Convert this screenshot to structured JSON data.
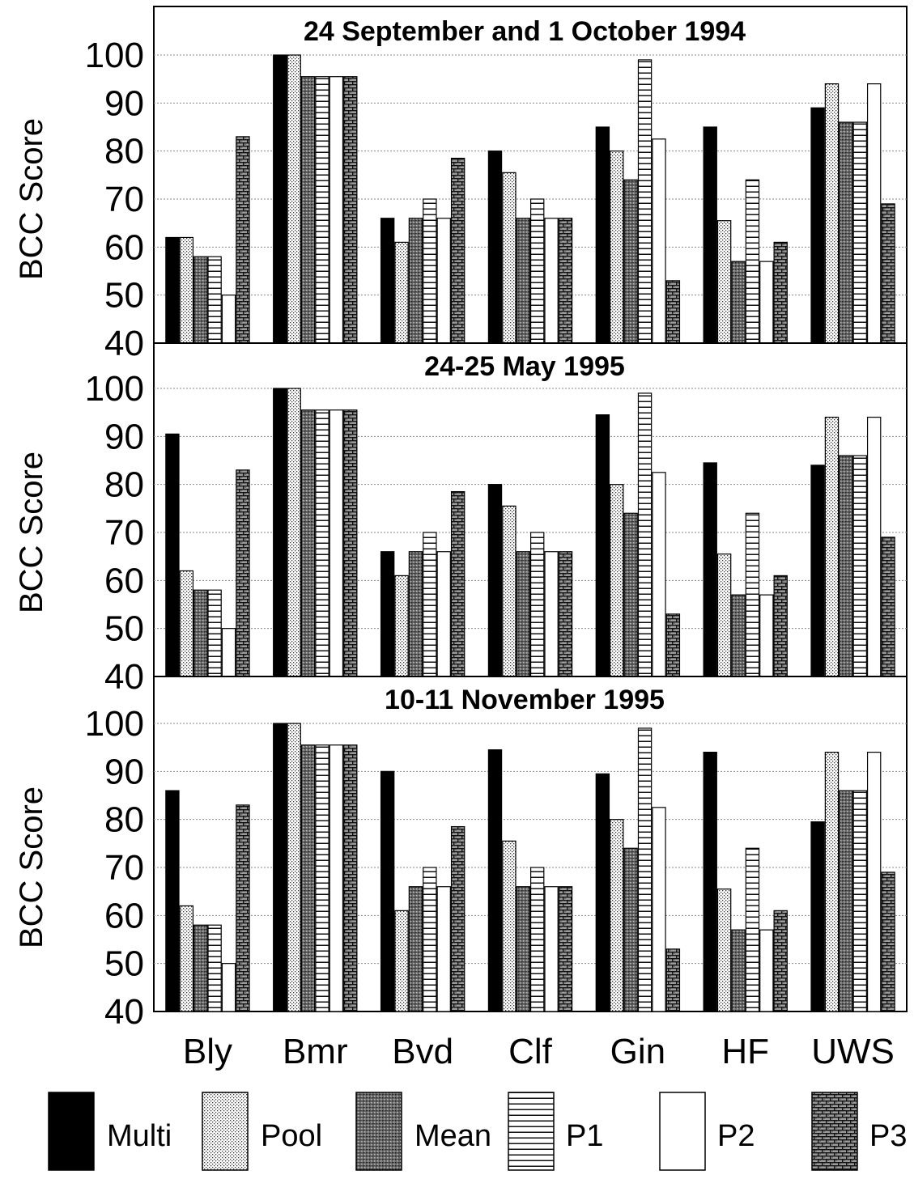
{
  "chart_data": {
    "type": "bar",
    "ylabel": "BCC Score",
    "ylim": [
      40,
      100
    ],
    "yticks": [
      40,
      50,
      60,
      70,
      80,
      90,
      100
    ],
    "categories": [
      "Bly",
      "Bmr",
      "Bvd",
      "Clf",
      "Gin",
      "HF",
      "UWS"
    ],
    "legend": [
      {
        "name": "Multi",
        "pattern": "solid-black"
      },
      {
        "name": "Pool",
        "pattern": "fine-dots"
      },
      {
        "name": "Mean",
        "pattern": "dark-stipple"
      },
      {
        "name": "P1",
        "pattern": "horizontal-lines"
      },
      {
        "name": "P2",
        "pattern": "white"
      },
      {
        "name": "P3",
        "pattern": "brick"
      }
    ],
    "legend_position": "bottom",
    "grid": true,
    "panels": [
      {
        "title": "24 September and 1 October 1994",
        "series": [
          {
            "name": "Multi",
            "values": [
              62,
              100,
              66,
              80,
              85,
              85,
              89
            ]
          },
          {
            "name": "Pool",
            "values": [
              62,
              100,
              61,
              75.5,
              80,
              65.5,
              94
            ]
          },
          {
            "name": "Mean",
            "values": [
              58,
              95.5,
              66,
              66,
              74,
              57,
              86
            ]
          },
          {
            "name": "P1",
            "values": [
              58,
              95.5,
              70,
              70,
              99,
              74,
              86
            ]
          },
          {
            "name": "P2",
            "values": [
              50,
              95.5,
              66,
              66,
              82.5,
              57,
              94
            ]
          },
          {
            "name": "P3",
            "values": [
              83,
              95.5,
              78.5,
              66,
              53,
              61,
              69
            ]
          }
        ]
      },
      {
        "title": "24-25 May 1995",
        "series": [
          {
            "name": "Multi",
            "values": [
              90.5,
              100,
              66,
              80,
              94.5,
              84.5,
              84
            ]
          },
          {
            "name": "Pool",
            "values": [
              62,
              100,
              61,
              75.5,
              80,
              65.5,
              94
            ]
          },
          {
            "name": "Mean",
            "values": [
              58,
              95.5,
              66,
              66,
              74,
              57,
              86
            ]
          },
          {
            "name": "P1",
            "values": [
              58,
              95.5,
              70,
              70,
              99,
              74,
              86
            ]
          },
          {
            "name": "P2",
            "values": [
              50,
              95.5,
              66,
              66,
              82.5,
              57,
              94
            ]
          },
          {
            "name": "P3",
            "values": [
              83,
              95.5,
              78.5,
              66,
              53,
              61,
              69
            ]
          }
        ]
      },
      {
        "title": "10-11 November 1995",
        "series": [
          {
            "name": "Multi",
            "values": [
              86,
              100,
              90,
              94.5,
              89.5,
              94,
              79.5
            ]
          },
          {
            "name": "Pool",
            "values": [
              62,
              100,
              61,
              75.5,
              80,
              65.5,
              94
            ]
          },
          {
            "name": "Mean",
            "values": [
              58,
              95.5,
              66,
              66,
              74,
              57,
              86
            ]
          },
          {
            "name": "P1",
            "values": [
              58,
              95.5,
              70,
              70,
              99,
              74,
              86
            ]
          },
          {
            "name": "P2",
            "values": [
              50,
              95.5,
              66,
              66,
              82.5,
              57,
              94
            ]
          },
          {
            "name": "P3",
            "values": [
              83,
              95.5,
              78.5,
              66,
              53,
              61,
              69
            ]
          }
        ]
      }
    ]
  }
}
